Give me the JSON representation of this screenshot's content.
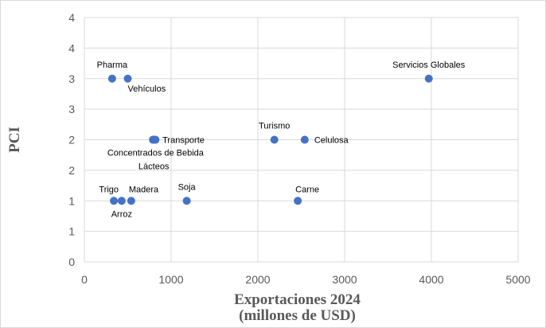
{
  "chart_data": {
    "type": "scatter",
    "title": "",
    "xlabel_lines": [
      "Exportaciones 2024",
      "(millones de USD)"
    ],
    "ylabel": "PCI",
    "xlim": [
      0,
      5000
    ],
    "ylim": [
      0,
      4
    ],
    "xticks": [
      0,
      1000,
      2000,
      3000,
      4000,
      5000
    ],
    "yticks": [
      0,
      0.5,
      1,
      1.5,
      2,
      2.5,
      3,
      3.5,
      4
    ],
    "ytick_labels": [
      "0",
      "1",
      "1",
      "2",
      "2",
      "3",
      "3",
      "4",
      "4"
    ],
    "grid": true,
    "marker_color": "#4472C4",
    "points": [
      {
        "label": "Pharma",
        "x": 320,
        "y": 3.0,
        "label_pos": "above"
      },
      {
        "label": "Vehículos",
        "x": 500,
        "y": 3.0,
        "label_pos": "below-right"
      },
      {
        "label": "Servicios Globales",
        "x": 3970,
        "y": 3.0,
        "label_pos": "above"
      },
      {
        "label": "Transporte",
        "x": 790,
        "y": 2.0,
        "label_pos": "right"
      },
      {
        "label": "Concentrados de Bebida",
        "x": 820,
        "y": 2.0,
        "label_pos": "below"
      },
      {
        "label": "Lácteos",
        "x": 800,
        "y": 2.0,
        "label_pos": "below2"
      },
      {
        "label": "Turismo",
        "x": 2190,
        "y": 2.0,
        "label_pos": "above"
      },
      {
        "label": "Celulosa",
        "x": 2540,
        "y": 2.0,
        "label_pos": "right"
      },
      {
        "label": "Trigo",
        "x": 340,
        "y": 1.0,
        "label_pos": "above-left"
      },
      {
        "label": "Arroz",
        "x": 430,
        "y": 1.0,
        "label_pos": "below"
      },
      {
        "label": "Madera",
        "x": 540,
        "y": 1.0,
        "label_pos": "above-right"
      },
      {
        "label": "Soja",
        "x": 1180,
        "y": 1.0,
        "label_pos": "above"
      },
      {
        "label": "Carne",
        "x": 2460,
        "y": 1.0,
        "label_pos": "above-right"
      }
    ]
  }
}
